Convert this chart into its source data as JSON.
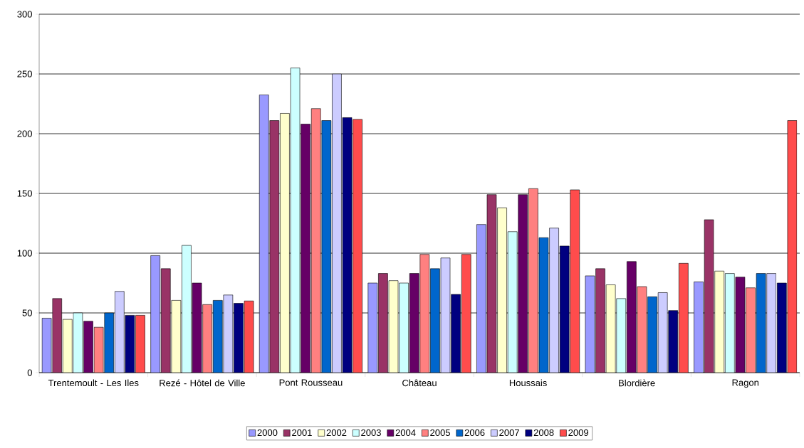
{
  "chart_data": {
    "type": "bar",
    "categories": [
      "Trentemoult - Les Iles",
      "Rezé - Hôtel de Ville",
      "Pont Rousseau",
      "Château",
      "Houssais",
      "Blordière",
      "Ragon"
    ],
    "series": [
      {
        "name": "2000",
        "color": "#9999ff",
        "values": [
          45.6,
          98,
          232.5,
          75,
          124,
          81,
          76
        ]
      },
      {
        "name": "2001",
        "color": "#993366",
        "values": [
          62,
          87,
          211,
          83,
          149,
          87,
          128
        ]
      },
      {
        "name": "2002",
        "color": "#ffffcc",
        "values": [
          44.6,
          60.5,
          217,
          77,
          138,
          73.5,
          85
        ]
      },
      {
        "name": "2003",
        "color": "#ccffff",
        "values": [
          50,
          106.5,
          255,
          75,
          118,
          62,
          83
        ]
      },
      {
        "name": "2004",
        "color": "#660066",
        "values": [
          43,
          75,
          208,
          83,
          149,
          93,
          80
        ]
      },
      {
        "name": "2005",
        "color": "#ff8080",
        "values": [
          38,
          57,
          221,
          99,
          154,
          72,
          71
        ]
      },
      {
        "name": "2006",
        "color": "#0066cc",
        "values": [
          50,
          60.5,
          211,
          87,
          113,
          63.5,
          83
        ]
      },
      {
        "name": "2007",
        "color": "#ccccff",
        "values": [
          68,
          65,
          250,
          96,
          121,
          67,
          83
        ]
      },
      {
        "name": "2008",
        "color": "#000080",
        "values": [
          48,
          58,
          213.5,
          65.5,
          106,
          52,
          75
        ]
      },
      {
        "name": "2009",
        "color": "#ff4c4c",
        "values": [
          48,
          60,
          212,
          99,
          153,
          91.5,
          211
        ]
      }
    ],
    "ylim": [
      0,
      300
    ],
    "yticks": [
      0,
      50,
      100,
      150,
      200,
      250,
      300
    ],
    "grid": "y",
    "legend": "bottom"
  }
}
